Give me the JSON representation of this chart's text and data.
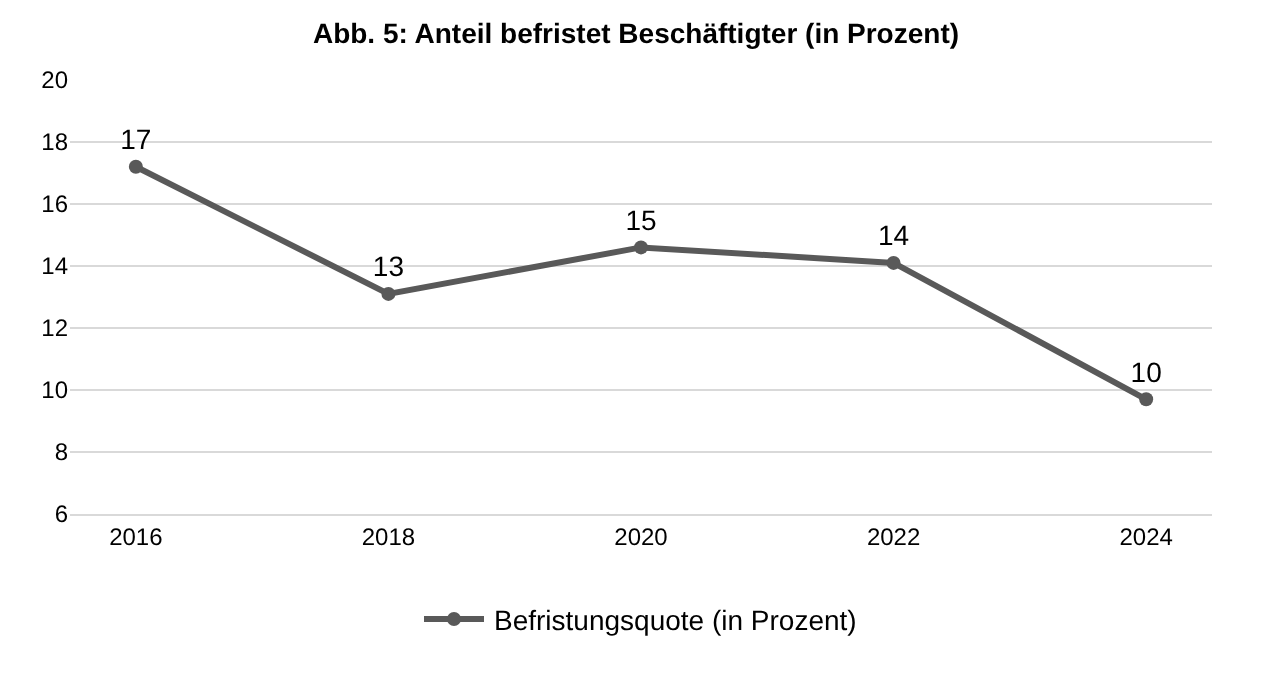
{
  "chart_data": {
    "type": "line",
    "title": "Abb. 5: Anteil befristet Beschäftigter (in Prozent)",
    "categories": [
      "2016",
      "2018",
      "2020",
      "2022",
      "2024"
    ],
    "series": [
      {
        "name": "Befristungsquote (in Prozent)",
        "color": "#595959",
        "values": [
          17.2,
          13.1,
          14.6,
          14.1,
          9.7
        ],
        "value_labels": [
          "17",
          "13",
          "15",
          "14",
          "10"
        ]
      }
    ],
    "ylim": [
      6,
      20
    ],
    "yticks": [
      6,
      8,
      10,
      12,
      14,
      16,
      18,
      20
    ],
    "grid": "y",
    "legend": "bottom",
    "marker": "circle",
    "line_style": "solid"
  }
}
